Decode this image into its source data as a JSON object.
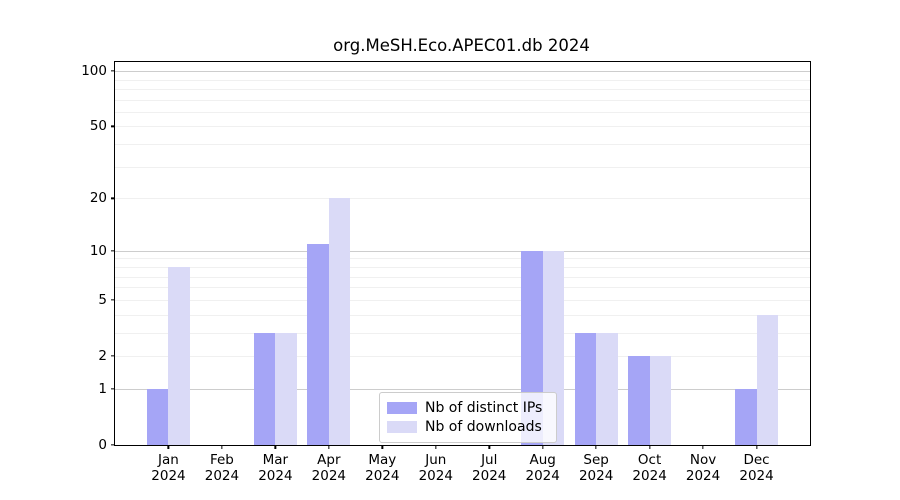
{
  "page": {
    "background": "#ffffff"
  },
  "chart_data": {
    "type": "bar",
    "title": "org.MeSH.Eco.APEC01.db 2024",
    "categories": [
      "Jan 2024",
      "Feb 2024",
      "Mar 2024",
      "Apr 2024",
      "May 2024",
      "Jun 2024",
      "Jul 2024",
      "Aug 2024",
      "Sep 2024",
      "Oct 2024",
      "Nov 2024",
      "Dec 2024"
    ],
    "x_tick_months": [
      "Jan",
      "Feb",
      "Mar",
      "Apr",
      "May",
      "Jun",
      "Jul",
      "Aug",
      "Sep",
      "Oct",
      "Nov",
      "Dec"
    ],
    "x_tick_year": "2024",
    "series": [
      {
        "name": "Nb of distinct IPs",
        "color": "#a5a5f6",
        "values": [
          1,
          0,
          3,
          11,
          0,
          0,
          0,
          10,
          3,
          2,
          0,
          1
        ]
      },
      {
        "name": "Nb of downloads",
        "color": "#dadaf7",
        "values": [
          8,
          0,
          3,
          20,
          0,
          0,
          0,
          10,
          3,
          2,
          0,
          4
        ]
      }
    ],
    "xlabel": "",
    "ylabel": "",
    "yscale": "quasi-log: y position = log10(1+value)",
    "ylim": [
      0,
      112
    ],
    "yticks": [
      0,
      1,
      2,
      5,
      10,
      20,
      50,
      100
    ],
    "grid_major": [
      1,
      10,
      100
    ],
    "grid_minor": [
      2,
      3,
      4,
      5,
      6,
      7,
      8,
      9,
      20,
      30,
      40,
      50,
      60,
      70,
      80,
      90
    ],
    "bar_width_fraction": 0.4,
    "legend": {
      "position": "lower center",
      "entries": [
        "Nb of distinct IPs",
        "Nb of downloads"
      ]
    },
    "colors": {
      "bar_distinct_ips": "#a5a5f6",
      "bar_downloads": "#dadaf7",
      "grid_major": "#cdcdcd",
      "grid_minor": "#f0f0f0",
      "axis": "#000000",
      "legend_border": "#cccccc",
      "legend_background": "rgba(255,255,255,0.8)"
    }
  }
}
